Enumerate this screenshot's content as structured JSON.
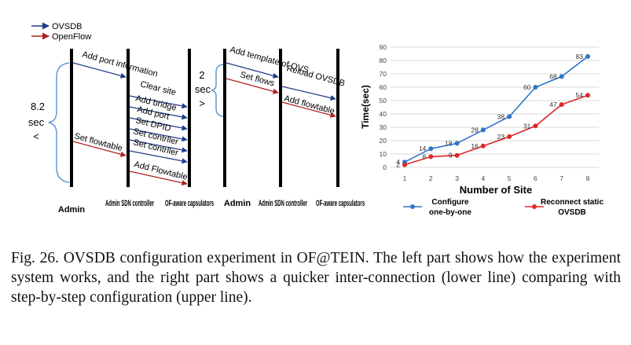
{
  "legend": {
    "ovsdb": "OVSDB",
    "openflow": "OpenFlow",
    "ovsdb_color": "#1f3c88",
    "openflow_color": "#b01e1e"
  },
  "left_diagram": {
    "lifelines": [
      "Admin",
      "Admin SDN controller",
      "OF-aware capsulators"
    ],
    "duration_top": "8.2",
    "duration_mid": "sec",
    "duration_bot": "<",
    "messages": [
      "Add port information",
      "Clear site",
      "Add bridge",
      "Add port",
      "Set DPID",
      "Set contrller",
      "Set contrller",
      "Set flowtable",
      "Add Flowtable"
    ]
  },
  "right_diagram": {
    "lifelines": [
      "Admin",
      "Admin SDN controller",
      "OF-aware capsulators"
    ],
    "duration_top": "2",
    "duration_mid": "sec",
    "duration_bot": ">",
    "messages": [
      "Add template of OVS",
      "Set flows",
      "Reload OVSDB",
      "Add flowtable"
    ]
  },
  "chart_data": {
    "type": "line",
    "x": [
      1,
      2,
      3,
      4,
      5,
      6,
      7,
      8
    ],
    "xlabel": "Number of Site",
    "ylabel": "Time(sec)",
    "ylim": [
      0,
      90
    ],
    "yticks": [
      0,
      10,
      20,
      30,
      40,
      50,
      60,
      70,
      80,
      90
    ],
    "grid": true,
    "legend_position": "bottom",
    "series": [
      {
        "name": "Configure one-by-one",
        "color": "#2e75c8",
        "values": [
          4,
          14,
          18,
          28,
          38,
          60,
          68,
          83
        ]
      },
      {
        "name": "Reconnect static OVSDB",
        "color": "#e02828",
        "values": [
          2,
          8,
          9,
          16,
          23,
          31,
          47,
          54
        ]
      }
    ]
  },
  "caption": {
    "text": "Fig. 26.   OVSDB configuration experiment in OF@TEIN. The left part shows how the experiment system works, and the right part shows a quicker inter-connection (lower line) comparing with step-by-step configuration (upper line)."
  }
}
